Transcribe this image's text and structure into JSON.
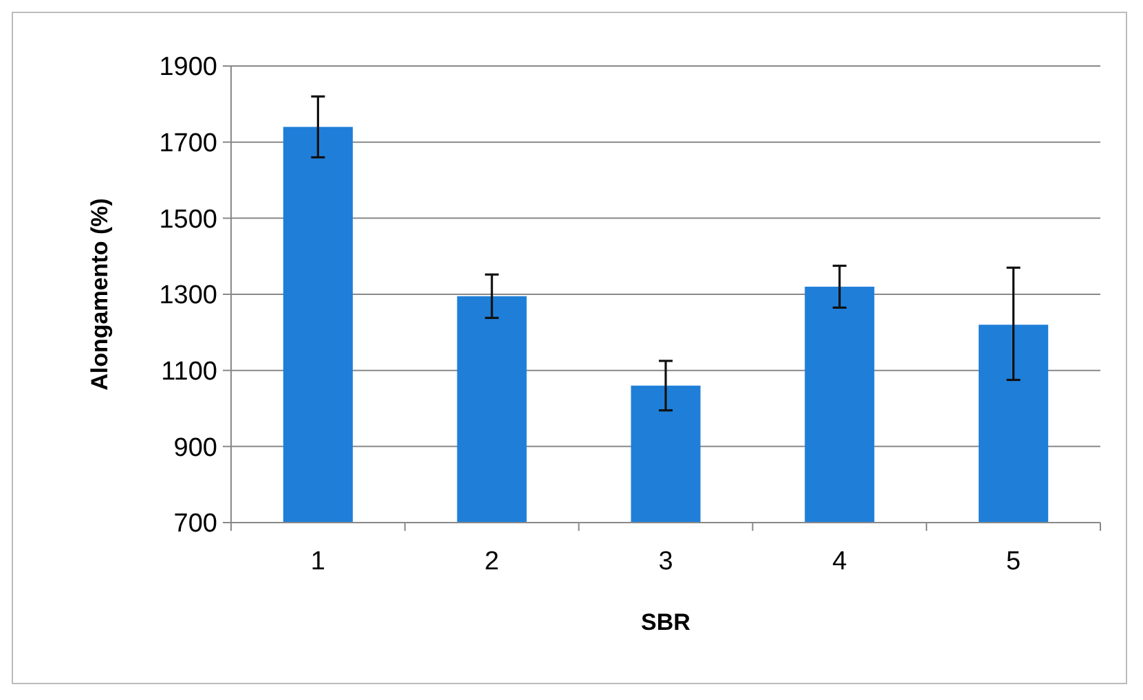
{
  "chart_data": {
    "type": "bar",
    "xlabel": "SBR",
    "ylabel": "Alongamento (%)",
    "categories": [
      "1",
      "2",
      "3",
      "4",
      "5"
    ],
    "values": [
      1740,
      1295,
      1060,
      1320,
      1220
    ],
    "errors": [
      80,
      57,
      65,
      55,
      [
        1075,
        1370
      ]
    ],
    "color": "#1f7fd8",
    "ylim": [
      700,
      1900
    ],
    "yticks": [
      700,
      900,
      1100,
      1300,
      1500,
      1700,
      1900
    ],
    "grid": "y"
  }
}
